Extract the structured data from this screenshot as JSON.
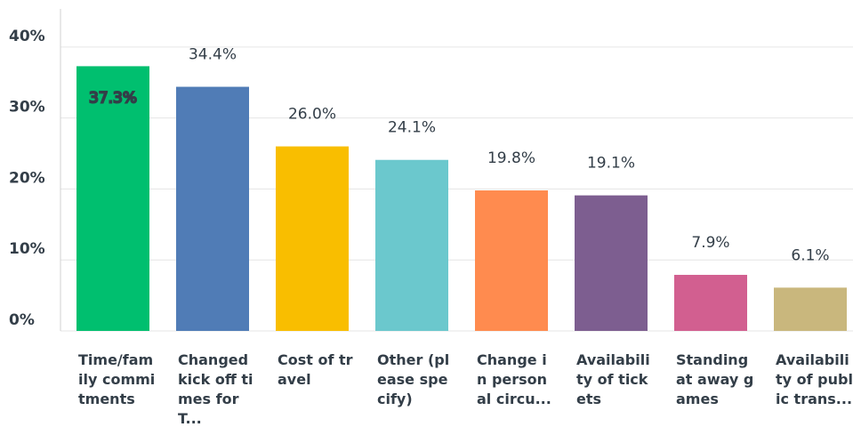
{
  "chart_data": {
    "type": "bar",
    "categories": [
      "Time/family commitments",
      "Changed kick off times for T...",
      "Cost of travel",
      "Other (please specify)",
      "Change in personal circu...",
      "Availability of tickets",
      "Standing at away games",
      "Availability of public trans..."
    ],
    "values": [
      37.3,
      34.4,
      26.0,
      24.1,
      19.8,
      19.1,
      7.9,
      6.1
    ],
    "value_labels": [
      "37.3%",
      "34.4%",
      "26.0%",
      "24.1%",
      "19.8%",
      "19.1%",
      "7.9%",
      "6.1%"
    ],
    "colors": [
      "#00bf6f",
      "#507cb6",
      "#f9be00",
      "#6bc8cd",
      "#ff8b4f",
      "#7d5e90",
      "#d25f90",
      "#c9b77d"
    ],
    "ylim": [
      0,
      45
    ],
    "yticks": [
      {
        "value": 0,
        "label": "0%"
      },
      {
        "value": 10,
        "label": "10%"
      },
      {
        "value": 20,
        "label": "20%"
      },
      {
        "value": 30,
        "label": "30%"
      },
      {
        "value": 40,
        "label": "40%"
      }
    ],
    "grid": true
  }
}
